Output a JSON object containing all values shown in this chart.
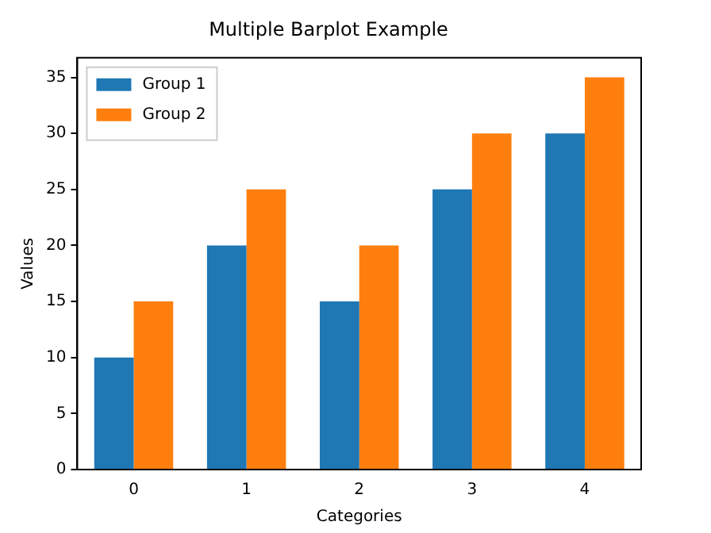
{
  "chart_data": {
    "type": "bar",
    "title": "Multiple Barplot Example",
    "xlabel": "Categories",
    "ylabel": "Values",
    "categories": [
      "0",
      "1",
      "2",
      "3",
      "4"
    ],
    "series": [
      {
        "name": "Group 1",
        "color": "#1f77b4",
        "values": [
          10,
          20,
          15,
          25,
          30
        ]
      },
      {
        "name": "Group 2",
        "color": "#ff7f0e",
        "values": [
          15,
          25,
          20,
          30,
          35
        ]
      }
    ],
    "ylim": [
      0,
      36.75
    ],
    "yticks": [
      0,
      5,
      10,
      15,
      20,
      25,
      30,
      35
    ],
    "grid": false,
    "legend": "top left"
  }
}
